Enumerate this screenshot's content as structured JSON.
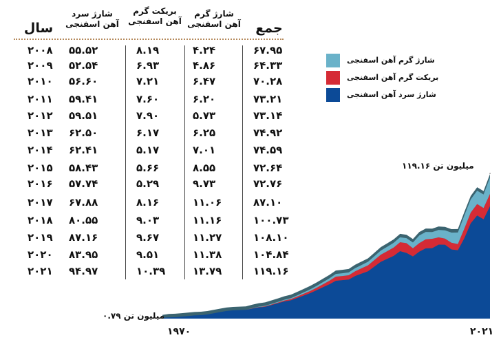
{
  "chart_data": {
    "type": "area",
    "title": "",
    "table": {
      "headers": {
        "year": "سال",
        "cold": [
          "شارژ سرد",
          "آهن اسفنجی"
        ],
        "briquette": [
          "بریکت گرم",
          "آهن اسفنجی"
        ],
        "hot": [
          "شارژ گرم",
          "آهن اسفنجی"
        ],
        "total": "جمع"
      },
      "rows": [
        {
          "year": "۲۰۰۸",
          "cold": "۵۵.۵۲",
          "briquette": "۸.۱۹",
          "hot": "۴.۲۴",
          "total": "۶۷.۹۵"
        },
        {
          "year": "۲۰۰۹",
          "cold": "۵۲.۵۴",
          "briquette": "۶.۹۳",
          "hot": "۴.۸۶",
          "total": "۶۴.۳۳"
        },
        {
          "year": "۲۰۱۰",
          "cold": "۵۶.۶۰",
          "briquette": "۷.۲۱",
          "hot": "۶.۴۷",
          "total": "۷۰.۲۸"
        },
        {
          "year": "۲۰۱۱",
          "cold": "۵۹.۴۱",
          "briquette": "۷.۶۰",
          "hot": "۶.۲۰",
          "total": "۷۳.۲۱"
        },
        {
          "year": "۲۰۱۲",
          "cold": "۵۹.۵۱",
          "briquette": "۷.۹۰",
          "hot": "۵.۷۳",
          "total": "۷۳.۱۴"
        },
        {
          "year": "۲۰۱۳",
          "cold": "۶۲.۵۰",
          "briquette": "۶.۱۷",
          "hot": "۶.۲۵",
          "total": "۷۴.۹۲"
        },
        {
          "year": "۲۰۱۴",
          "cold": "۶۲.۴۱",
          "briquette": "۵.۱۷",
          "hot": "۷.۰۱",
          "total": "۷۴.۵۹"
        },
        {
          "year": "۲۰۱۵",
          "cold": "۵۸.۴۳",
          "briquette": "۵.۶۶",
          "hot": "۸.۵۵",
          "total": "۷۲.۶۴"
        },
        {
          "year": "۲۰۱۶",
          "cold": "۵۷.۷۴",
          "briquette": "۵.۲۹",
          "hot": "۹.۷۳",
          "total": "۷۲.۷۶"
        },
        {
          "year": "۲۰۱۷",
          "cold": "۶۷.۸۸",
          "briquette": "۸.۱۶",
          "hot": "۱۱.۰۶",
          "total": "۸۷.۱۰"
        },
        {
          "year": "۲۰۱۸",
          "cold": "۸۰.۵۵",
          "briquette": "۹.۰۳",
          "hot": "۱۱.۱۶",
          "total": "۱۰۰.۷۳"
        },
        {
          "year": "۲۰۱۹",
          "cold": "۸۷.۱۶",
          "briquette": "۹.۶۷",
          "hot": "۱۱.۲۷",
          "total": "۱۰۸.۱۰"
        },
        {
          "year": "۲۰۲۰",
          "cold": "۸۳.۹۵",
          "briquette": "۹.۵۱",
          "hot": "۱۱.۳۸",
          "total": "۱۰۴.۸۴"
        },
        {
          "year": "۲۰۲۱",
          "cold": "۹۴.۹۷",
          "briquette": "۱۰.۳۹",
          "hot": "۱۳.۷۹",
          "total": "۱۱۹.۱۶"
        }
      ]
    },
    "legend": [
      {
        "label": "شارژ گرم آهن اسفنجی",
        "color": "#6ab2c9"
      },
      {
        "label": "بریکت گرم آهن اسفنجی",
        "color": "#d52b35"
      },
      {
        "label": "شارژ سرد آهن اسفنجی",
        "color": "#0c4a97"
      }
    ],
    "colors": {
      "cold": "#0c4a97",
      "briquette": "#d52b35",
      "hot": "#6ab2c9",
      "outline": "#3b6470"
    },
    "x_start_label": "۱۹۷۰",
    "x_end_label": "۲۰۲۱",
    "start_annotation": "۰.۷۹ میلیون تن",
    "end_annotation": "۱۱۹.۱۶ میلیون تن",
    "x": [
      1970,
      1971,
      1972,
      1973,
      1974,
      1975,
      1976,
      1977,
      1978,
      1979,
      1980,
      1981,
      1982,
      1983,
      1984,
      1985,
      1986,
      1987,
      1988,
      1989,
      1990,
      1991,
      1992,
      1993,
      1994,
      1995,
      1996,
      1997,
      1998,
      1999,
      2000,
      2001,
      2002,
      2003,
      2004,
      2005,
      2006,
      2007,
      2008,
      2009,
      2010,
      2011,
      2012,
      2013,
      2014,
      2015,
      2016,
      2017,
      2018,
      2019,
      2020,
      2021
    ],
    "series": [
      {
        "key": "cold",
        "values": [
          0.79,
          1.0,
          1.2,
          1.7,
          2.2,
          2.7,
          2.9,
          3.5,
          4.5,
          5.5,
          6.5,
          7.0,
          7.2,
          7.4,
          8.5,
          9.5,
          10.0,
          11.5,
          13.0,
          14.5,
          15.5,
          17.5,
          19.5,
          21.5,
          24.0,
          26.5,
          29.0,
          32.0,
          32.5,
          33.0,
          36.0,
          38.0,
          40.0,
          44.0,
          48.0,
          50.5,
          53.0,
          57.0,
          55.52,
          52.54,
          56.6,
          59.41,
          59.51,
          62.5,
          62.41,
          58.43,
          57.74,
          67.88,
          80.55,
          87.16,
          83.95,
          94.97
        ]
      },
      {
        "key": "briquette",
        "values": [
          0,
          0,
          0,
          0,
          0,
          0,
          0,
          0,
          0,
          0,
          0,
          0,
          0,
          0,
          0.2,
          0.3,
          0.4,
          0.5,
          0.6,
          0.8,
          1.0,
          1.2,
          1.5,
          1.8,
          2.0,
          2.5,
          3.0,
          3.5,
          3.5,
          3.6,
          4.0,
          4.5,
          5.0,
          5.5,
          6.0,
          6.5,
          7.0,
          7.5,
          8.19,
          6.93,
          7.21,
          7.6,
          7.9,
          6.17,
          5.17,
          5.66,
          5.29,
          8.16,
          9.03,
          9.67,
          9.51,
          10.39
        ]
      },
      {
        "key": "hot",
        "values": [
          0,
          0,
          0,
          0,
          0,
          0,
          0,
          0,
          0,
          0,
          0,
          0,
          0,
          0,
          0.2,
          0.3,
          0.4,
          0.5,
          0.6,
          0.7,
          0.8,
          1.0,
          1.2,
          1.4,
          1.6,
          1.8,
          2.0,
          2.2,
          2.3,
          2.4,
          2.6,
          2.8,
          3.0,
          3.2,
          3.5,
          3.7,
          4.0,
          4.2,
          4.24,
          4.86,
          6.47,
          6.2,
          5.73,
          6.25,
          7.01,
          8.55,
          9.73,
          11.06,
          11.16,
          11.27,
          11.38,
          13.79
        ]
      }
    ]
  }
}
